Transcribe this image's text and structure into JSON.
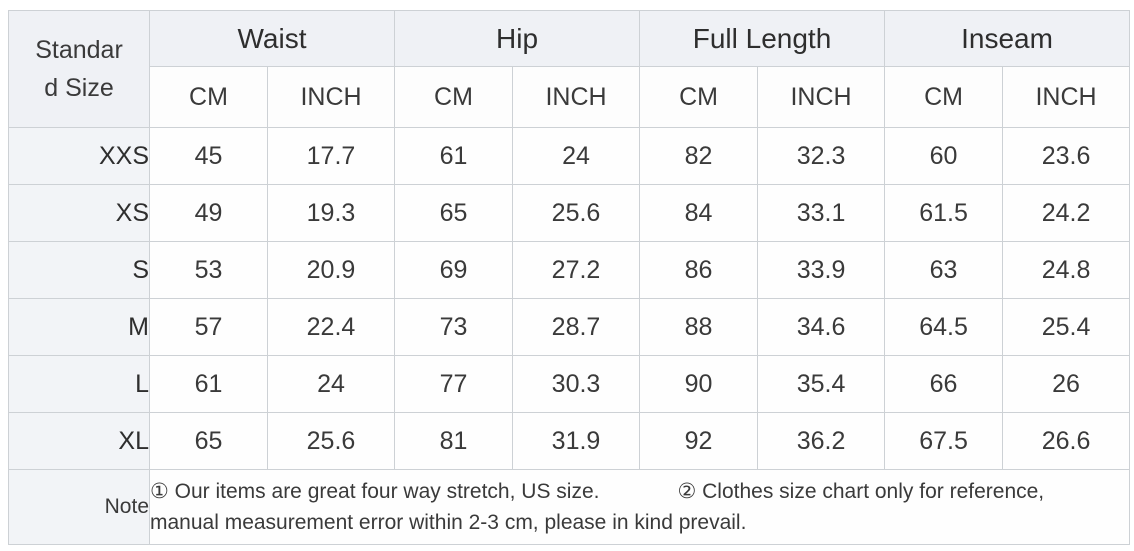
{
  "colors": {
    "header_bg": "#eff1f5",
    "first_col_bg": "#f2f4f7",
    "cell_bg": "#fefefe",
    "border": "#cdd1d5",
    "text": "#333333"
  },
  "table": {
    "corner_label": "Standard Size",
    "groups": [
      {
        "label": "Waist"
      },
      {
        "label": "Hip"
      },
      {
        "label": "Full Length"
      },
      {
        "label": "Inseam"
      }
    ],
    "units": [
      "CM",
      "INCH",
      "CM",
      "INCH",
      "CM",
      "INCH",
      "CM",
      "INCH"
    ],
    "rows": [
      {
        "size": "XXS",
        "values": [
          "45",
          "17.7",
          "61",
          "24",
          "82",
          "32.3",
          "60",
          "23.6"
        ]
      },
      {
        "size": "XS",
        "values": [
          "49",
          "19.3",
          "65",
          "25.6",
          "84",
          "33.1",
          "61.5",
          "24.2"
        ]
      },
      {
        "size": "S",
        "values": [
          "53",
          "20.9",
          "69",
          "27.2",
          "86",
          "33.9",
          "63",
          "24.8"
        ]
      },
      {
        "size": "M",
        "values": [
          "57",
          "22.4",
          "73",
          "28.7",
          "88",
          "34.6",
          "64.5",
          "25.4"
        ]
      },
      {
        "size": "L",
        "values": [
          "61",
          "24",
          "77",
          "30.3",
          "90",
          "35.4",
          "66",
          "26"
        ]
      },
      {
        "size": "XL",
        "values": [
          "65",
          "25.6",
          "81",
          "31.9",
          "92",
          "36.2",
          "67.5",
          "26.6"
        ]
      }
    ],
    "note": {
      "label": "Note",
      "part1": "① Our items are great four way stretch, US size.",
      "part2": "② Clothes size chart only for reference,",
      "part3": "manual measurement error within 2-3 cm, please in kind prevail."
    }
  },
  "chart_data": {
    "type": "table",
    "columns": [
      "Standard Size",
      "Waist CM",
      "Waist INCH",
      "Hip CM",
      "Hip INCH",
      "Full Length CM",
      "Full Length INCH",
      "Inseam CM",
      "Inseam INCH"
    ],
    "rows": [
      [
        "XXS",
        45,
        17.7,
        61,
        24,
        82,
        32.3,
        60,
        23.6
      ],
      [
        "XS",
        49,
        19.3,
        65,
        25.6,
        84,
        33.1,
        61.5,
        24.2
      ],
      [
        "S",
        53,
        20.9,
        69,
        27.2,
        86,
        33.9,
        63,
        24.8
      ],
      [
        "M",
        57,
        22.4,
        73,
        28.7,
        88,
        34.6,
        64.5,
        25.4
      ],
      [
        "L",
        61,
        24,
        77,
        30.3,
        90,
        35.4,
        66,
        26
      ],
      [
        "XL",
        65,
        25.6,
        81,
        31.9,
        92,
        36.2,
        67.5,
        26.6
      ]
    ],
    "notes": [
      "① Our items are great four way stretch, US size.",
      "② Clothes size chart only for reference, manual measurement error within 2-3 cm, please in kind prevail."
    ]
  }
}
